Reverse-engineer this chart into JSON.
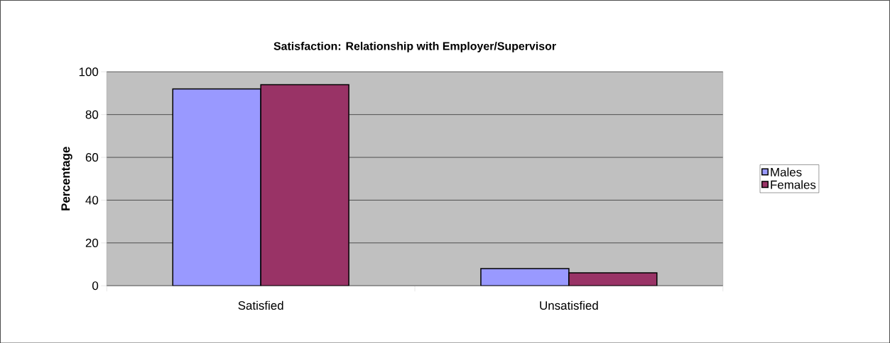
{
  "chart_data": {
    "type": "bar",
    "title": "Satisfaction: Relationship with Employer/Supervisor",
    "ylabel": "Percentage",
    "categories": [
      "Satisfied",
      "Unsatisfied"
    ],
    "series": [
      {
        "name": "Males",
        "color": "#9999ff",
        "values": [
          92,
          8
        ]
      },
      {
        "name": "Females",
        "color": "#993366",
        "values": [
          94,
          6
        ]
      }
    ],
    "ylim": [
      0,
      100
    ],
    "yticks": [
      0,
      20,
      40,
      60,
      80,
      100
    ],
    "grid": "y",
    "legend": "right"
  }
}
